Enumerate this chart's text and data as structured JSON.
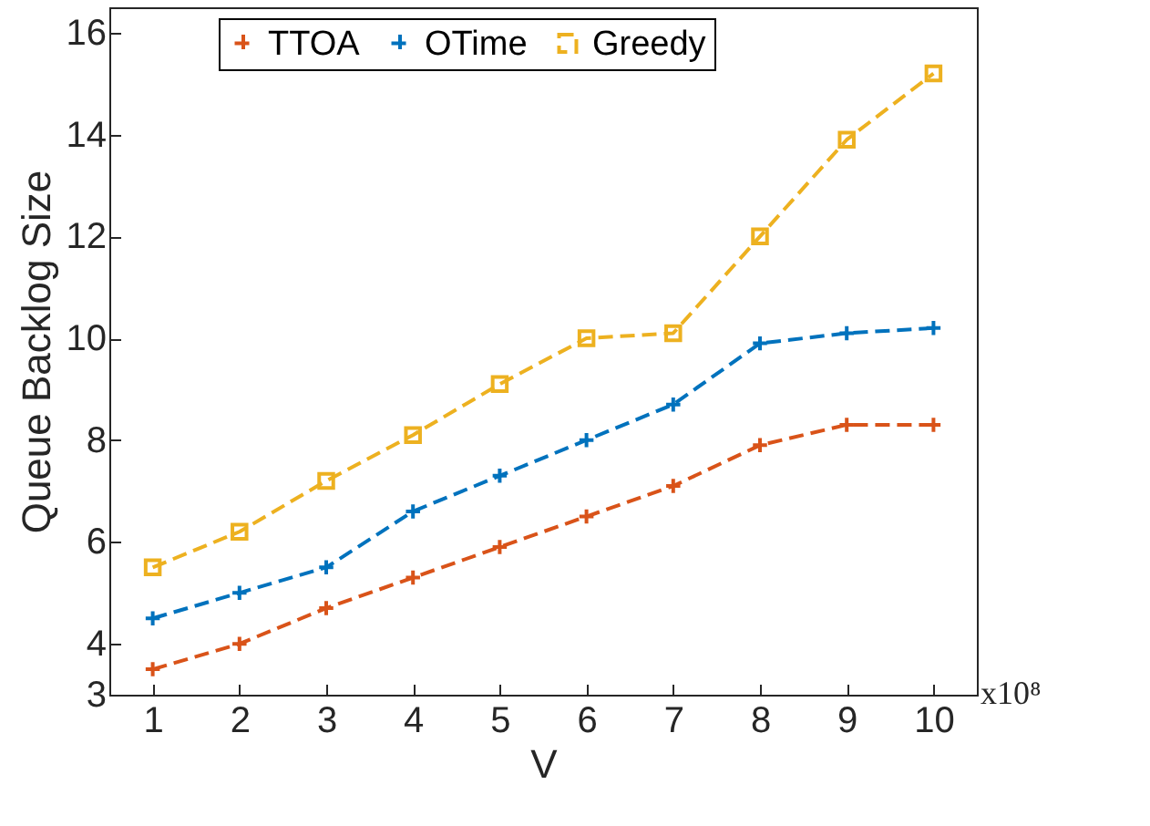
{
  "chart_data": {
    "type": "line",
    "xlabel": "V",
    "ylabel": "Queue Backlog Size",
    "x": [
      1,
      2,
      3,
      4,
      5,
      6,
      7,
      8,
      9,
      10
    ],
    "series": [
      {
        "name": "TTOA",
        "color": "#d95319",
        "marker": "cross",
        "line_style": "dashed",
        "values": [
          3.5,
          4.0,
          4.7,
          5.3,
          5.9,
          6.5,
          7.1,
          7.9,
          8.3,
          8.3
        ]
      },
      {
        "name": "OTime",
        "color": "#0072bd",
        "marker": "cross",
        "line_style": "dashed",
        "values": [
          4.5,
          5.0,
          5.5,
          6.6,
          7.3,
          8.0,
          8.7,
          9.9,
          10.1,
          10.2
        ]
      },
      {
        "name": "Greedy",
        "color": "#edb120",
        "marker": "square",
        "line_style": "dashed",
        "values": [
          5.5,
          6.2,
          7.2,
          8.1,
          9.1,
          10.0,
          10.1,
          12.0,
          13.9,
          15.2
        ]
      }
    ],
    "xlim": [
      0.5,
      10.5
    ],
    "xticks": [
      1,
      2,
      3,
      4,
      5,
      6,
      7,
      8,
      9,
      10
    ],
    "ylim": [
      3,
      16.5
    ],
    "yticks": [
      3,
      4,
      6,
      8,
      10,
      12,
      14,
      16
    ],
    "annotations": [
      "x10⁸"
    ],
    "grid": false,
    "legend": "top"
  }
}
